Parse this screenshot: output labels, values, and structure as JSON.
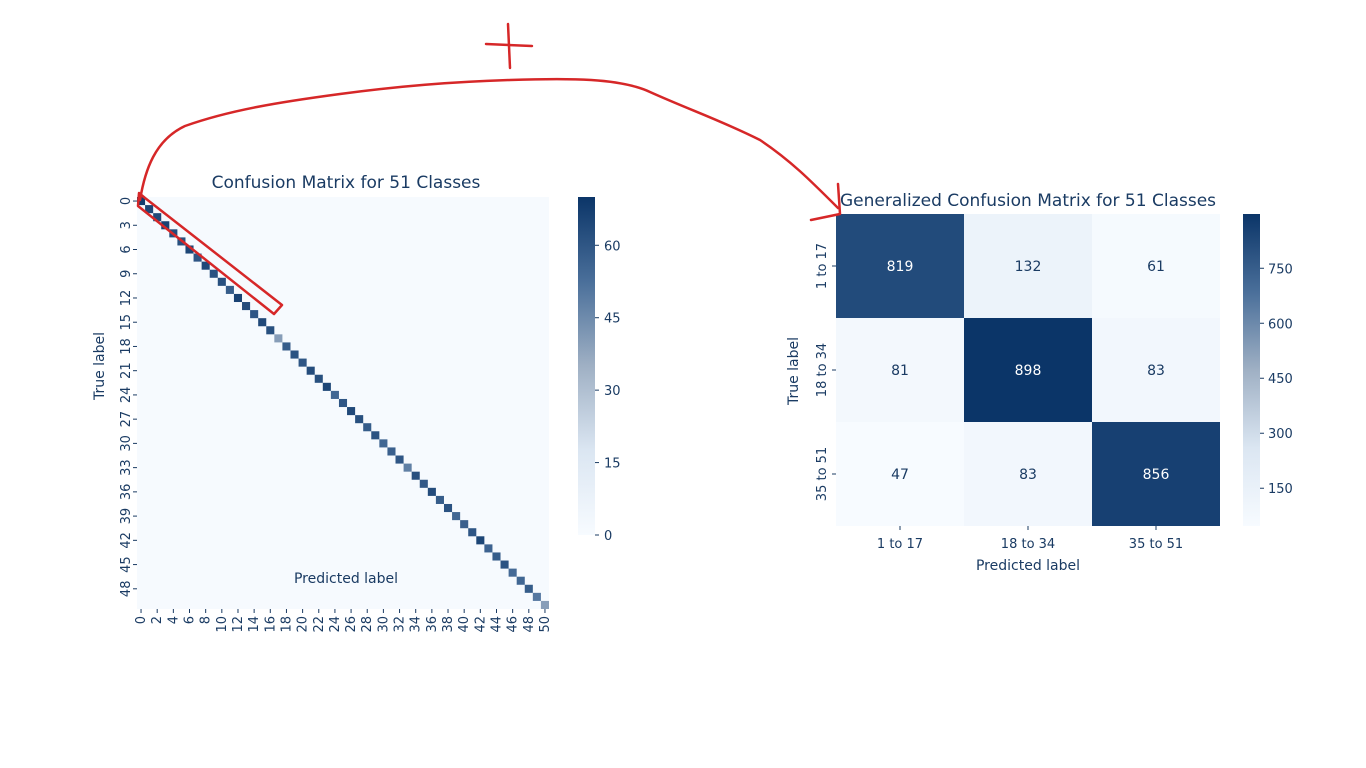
{
  "colors": {
    "low": "#f7fbff",
    "high": "#0b3568",
    "text_dark": "#1a3b63",
    "annotation_red": "#d62728"
  },
  "annotation": {
    "plus_symbol": "+"
  },
  "chart_data": [
    {
      "type": "heatmap",
      "title": "Confusion Matrix for 51 Classes",
      "xlabel": "Predicted label",
      "ylabel": "True label",
      "n_classes": 51,
      "diagonal_values": [
        68,
        65,
        64,
        66,
        63,
        62,
        65,
        60,
        64,
        61,
        62,
        58,
        66,
        63,
        60,
        64,
        62,
        40,
        58,
        61,
        60,
        63,
        62,
        65,
        55,
        60,
        64,
        62,
        58,
        61,
        55,
        57,
        60,
        48,
        62,
        59,
        63,
        58,
        61,
        55,
        57,
        60,
        65,
        56,
        58,
        61,
        54,
        55,
        58,
        50,
        40
      ],
      "off_diagonal": "approximately 0",
      "x_ticks": [
        "0",
        "2",
        "4",
        "6",
        "8",
        "10",
        "12",
        "14",
        "16",
        "18",
        "20",
        "22",
        "24",
        "26",
        "28",
        "30",
        "32",
        "34",
        "36",
        "38",
        "40",
        "42",
        "44",
        "46",
        "48",
        "50"
      ],
      "y_ticks": [
        "0",
        "3",
        "6",
        "9",
        "12",
        "15",
        "18",
        "21",
        "24",
        "27",
        "30",
        "33",
        "36",
        "39",
        "42",
        "45",
        "48"
      ],
      "colorbar": {
        "min": 0,
        "max": 70,
        "ticks": [
          0,
          15,
          30,
          45,
          60
        ],
        "colormap": "Blues"
      },
      "highlighted_region": "diagonal classes 0 to 16"
    },
    {
      "type": "heatmap",
      "title": "Generalized Confusion Matrix for 51 Classes",
      "xlabel": "Predicted label",
      "ylabel": "True label",
      "x_categories": [
        "1 to 17",
        "18 to 34",
        "35 to 51"
      ],
      "y_categories": [
        "1 to 17",
        "18 to 34",
        "35 to 51"
      ],
      "values": [
        [
          819,
          132,
          61
        ],
        [
          81,
          898,
          83
        ],
        [
          47,
          83,
          856
        ]
      ],
      "colorbar": {
        "min": 47,
        "max": 898,
        "ticks": [
          150,
          300,
          450,
          600,
          750
        ],
        "colormap": "Blues"
      }
    }
  ]
}
